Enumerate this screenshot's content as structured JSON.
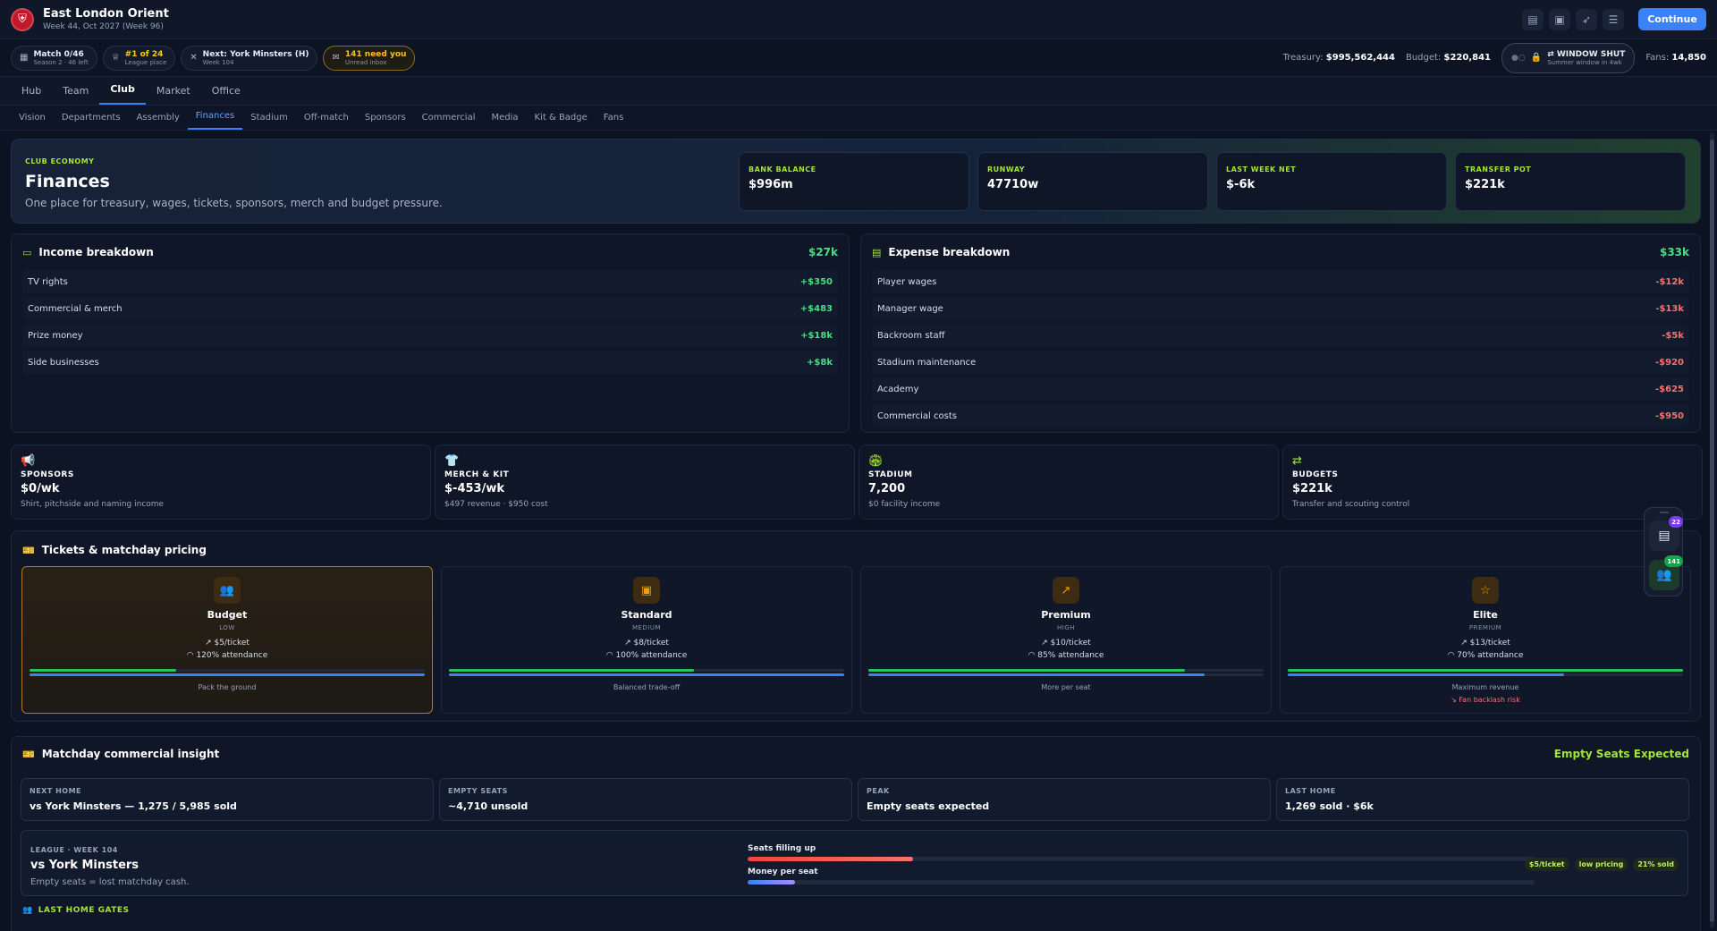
{
  "app": {
    "club_name": "East London Orient",
    "week_label": "Week 44, Oct 2027 (Week 96)",
    "continue_label": "Continue"
  },
  "header_icons": [
    "clipboard-icon",
    "badge-icon",
    "rocket-icon",
    "sliders-icon"
  ],
  "status": {
    "match": {
      "title": "Match 0/46",
      "sub": "Season 2 · 46 left"
    },
    "league": {
      "title": "#1 of 24",
      "sub": "League place"
    },
    "next": {
      "title": "Next: York Minsters (H)",
      "sub": "Week 104"
    },
    "inbox": {
      "title": "141 need you",
      "sub": "Unread inbox"
    },
    "treasury_label": "Treasury:",
    "treasury_value": "$995,562,444",
    "budget_label": "Budget:",
    "budget_value": "$220,841",
    "window": {
      "title": "WINDOW SHUT",
      "sub": "Summer window in 4wk"
    },
    "fans_label": "Fans:",
    "fans_value": "14,850"
  },
  "nav_main": [
    "Hub",
    "Team",
    "Club",
    "Market",
    "Office"
  ],
  "nav_sub": [
    "Vision",
    "Departments",
    "Assembly",
    "Finances",
    "Stadium",
    "Off-match",
    "Sponsors",
    "Commercial",
    "Media",
    "Kit & Badge",
    "Fans"
  ],
  "hero": {
    "kicker": "CLUB ECONOMY",
    "title": "Finances",
    "subtitle": "One place for treasury, wages, tickets, sponsors, merch and budget pressure.",
    "kpis": [
      {
        "label": "BANK BALANCE",
        "value": "$996m"
      },
      {
        "label": "RUNWAY",
        "value": "47710w"
      },
      {
        "label": "LAST WEEK NET",
        "value": "$-6k"
      },
      {
        "label": "TRANSFER POT",
        "value": "$221k"
      }
    ]
  },
  "income": {
    "title": "Income breakdown",
    "total": "$27k",
    "rows": [
      {
        "label": "TV rights",
        "value": "+$350"
      },
      {
        "label": "Commercial & merch",
        "value": "+$483"
      },
      {
        "label": "Prize money",
        "value": "+$18k"
      },
      {
        "label": "Side businesses",
        "value": "+$8k"
      }
    ]
  },
  "expense": {
    "title": "Expense breakdown",
    "total": "$33k",
    "rows": [
      {
        "label": "Player wages",
        "value": "-$12k"
      },
      {
        "label": "Manager wage",
        "value": "-$13k"
      },
      {
        "label": "Backroom staff",
        "value": "-$5k"
      },
      {
        "label": "Stadium maintenance",
        "value": "-$920"
      },
      {
        "label": "Academy",
        "value": "-$625"
      },
      {
        "label": "Commercial costs",
        "value": "-$950"
      }
    ]
  },
  "minis": [
    {
      "label": "SPONSORS",
      "value": "$0/wk",
      "sub": "Shirt, pitchside and naming income"
    },
    {
      "label": "MERCH & KIT",
      "value": "$-453/wk",
      "sub": "$497 revenue · $950 cost"
    },
    {
      "label": "STADIUM",
      "value": "7,200",
      "sub": "$0 facility income"
    },
    {
      "label": "BUDGETS",
      "value": "$221k",
      "sub": "Transfer and scouting control"
    }
  ],
  "tickets": {
    "title": "Tickets & matchday pricing",
    "tiers": [
      {
        "name": "Budget",
        "level": "LOW",
        "price": "$5/ticket",
        "attendance": "120% attendance",
        "caption": "Pack the ground",
        "risk": "",
        "fill_green": 0.37,
        "fill_blue": 1.0
      },
      {
        "name": "Standard",
        "level": "MEDIUM",
        "price": "$8/ticket",
        "attendance": "100% attendance",
        "caption": "Balanced trade-off",
        "risk": "",
        "fill_green": 0.62,
        "fill_blue": 1.0
      },
      {
        "name": "Premium",
        "level": "HIGH",
        "price": "$10/ticket",
        "attendance": "85% attendance",
        "caption": "More per seat",
        "risk": "",
        "fill_green": 0.8,
        "fill_blue": 0.85
      },
      {
        "name": "Elite",
        "level": "PREMIUM",
        "price": "$13/ticket",
        "attendance": "70% attendance",
        "caption": "Maximum revenue",
        "risk": "Fan backlash risk",
        "fill_green": 1.0,
        "fill_blue": 0.7
      }
    ]
  },
  "insight": {
    "title": "Matchday commercial insight",
    "status": "Empty Seats Expected",
    "boxes": [
      {
        "label": "NEXT HOME",
        "value": "vs York Minsters — 1,275 / 5,985 sold"
      },
      {
        "label": "EMPTY SEATS",
        "value": "~4,710 unsold"
      },
      {
        "label": "PEAK",
        "value": "Empty seats expected"
      },
      {
        "label": "LAST HOME",
        "value": "1,269 sold · $6k"
      }
    ],
    "match": {
      "kicker": "LEAGUE · WEEK 104",
      "title": "vs York Minsters",
      "sub": "Empty seats = lost matchday cash.",
      "bar1_label": "Seats filling up",
      "bar1_fill": 0.21,
      "bar2_label": "Money per seat",
      "bar2_fill": 0.06,
      "tags": [
        "$5/ticket",
        "low pricing",
        "21% sold"
      ]
    },
    "gates_title": "LAST HOME GATES"
  },
  "float": {
    "badge1": "22",
    "badge2": "141"
  },
  "colors": {
    "accent": "#3b82f6",
    "lime": "#a3e635",
    "positive": "#4ade80",
    "negative": "#f87171",
    "amber": "#f59e0b"
  }
}
